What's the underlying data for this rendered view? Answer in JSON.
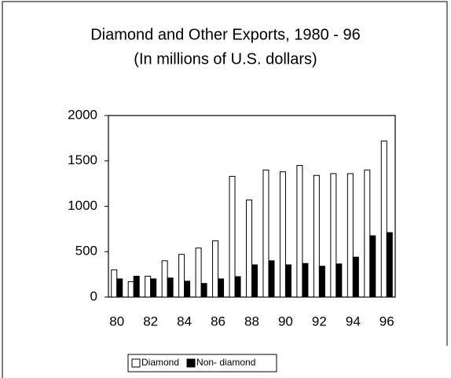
{
  "chart_data": {
    "type": "bar",
    "title": "Diamond and Other Exports, 1980 - 96",
    "subtitle": "(In millions of U.S. dollars)",
    "categories": [
      "80",
      null,
      "82",
      null,
      "84",
      null,
      "86",
      null,
      "88",
      null,
      "90",
      null,
      "92",
      null,
      "94",
      null,
      "96"
    ],
    "series": [
      {
        "name": "Diamond",
        "color": "#ffffff",
        "values": [
          300,
          170,
          230,
          400,
          470,
          540,
          620,
          1330,
          1070,
          1400,
          1380,
          1450,
          1340,
          1360,
          1360,
          1400,
          1720
        ]
      },
      {
        "name": "Non- diamond",
        "color": "#000000",
        "values": [
          200,
          230,
          200,
          210,
          175,
          150,
          200,
          225,
          355,
          400,
          355,
          370,
          340,
          365,
          440,
          675,
          710
        ]
      }
    ],
    "ylim": [
      0,
      2000
    ],
    "yticks": [
      0,
      500,
      1000,
      1500,
      2000
    ],
    "legend": "bottom"
  }
}
